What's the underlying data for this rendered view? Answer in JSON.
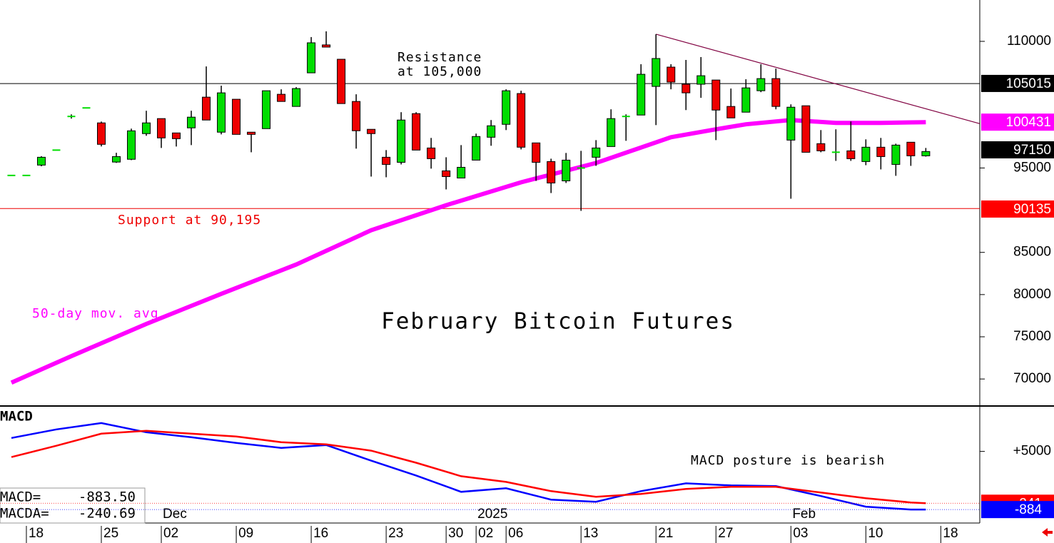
{
  "chart_data": [
    {
      "type": "candlestick",
      "title": "February Bitcoin Futures",
      "x": [
        0,
        1,
        2,
        3,
        4,
        5,
        6,
        7,
        8,
        9,
        10,
        11,
        12,
        13,
        14,
        15,
        16,
        17,
        18,
        19,
        20,
        21,
        22,
        23,
        24,
        25,
        26,
        27,
        28,
        29,
        30,
        31,
        32,
        33,
        34,
        35,
        36,
        37,
        38,
        39,
        40,
        41,
        42,
        43,
        44,
        45,
        46,
        47,
        48,
        49,
        50,
        51,
        52,
        53,
        54,
        55,
        56,
        57,
        58,
        59,
        60,
        61
      ],
      "open": [
        94200,
        94200,
        95340,
        97200,
        101100,
        102200,
        100340,
        95700,
        96030,
        99070,
        100850,
        99150,
        99750,
        103390,
        99240,
        103140,
        99240,
        99660,
        103730,
        102290,
        106270,
        109580,
        107880,
        102880,
        99580,
        96270,
        95670,
        101440,
        97370,
        94660,
        93810,
        95930,
        98640,
        100170,
        103820,
        97970,
        95760,
        93470,
        95000,
        96270,
        97540,
        101100,
        101270,
        104660,
        106950,
        104920,
        104920,
        105420,
        102290,
        101610,
        104150,
        105590,
        98300,
        102370,
        97880,
        96860,
        97030,
        95760,
        97460,
        95420,
        98050,
        96440
      ],
      "high": [
        94200,
        94200,
        96400,
        97200,
        101350,
        102200,
        100500,
        96800,
        99660,
        101780,
        100850,
        99150,
        101780,
        107030,
        104750,
        103140,
        99240,
        104150,
        104320,
        104580,
        110510,
        111190,
        107880,
        103730,
        99580,
        97120,
        101610,
        101610,
        98560,
        96270,
        97710,
        99070,
        100680,
        104320,
        104150,
        97970,
        96100,
        96780,
        97030,
        98300,
        101950,
        101350,
        107290,
        110850,
        107290,
        107800,
        108140,
        105420,
        104410,
        105510,
        107290,
        106780,
        102540,
        102370,
        99490,
        99580,
        100510,
        98390,
        98560,
        97880,
        98050,
        97370
      ],
      "low": [
        94200,
        94200,
        95200,
        97200,
        100850,
        102200,
        97550,
        95600,
        95930,
        98810,
        97370,
        97540,
        97710,
        100680,
        98980,
        98980,
        96860,
        99660,
        102880,
        102290,
        106270,
        109320,
        102630,
        97290,
        93980,
        93900,
        95420,
        97120,
        94920,
        92460,
        93810,
        95930,
        97630,
        99490,
        97200,
        93470,
        92030,
        93220,
        89920,
        95250,
        97540,
        98220,
        101270,
        100080,
        104320,
        101860,
        103310,
        98300,
        100930,
        101610,
        103980,
        101950,
        91360,
        96860,
        96860,
        95840,
        95840,
        95330,
        94830,
        94070,
        95250,
        96350
      ],
      "close": [
        94200,
        94200,
        96270,
        97200,
        101190,
        102200,
        97800,
        96350,
        99400,
        100340,
        98560,
        98470,
        101020,
        100680,
        103900,
        98980,
        98980,
        104150,
        102880,
        104410,
        109830,
        109320,
        102630,
        99410,
        99070,
        95420,
        100680,
        97120,
        96100,
        93980,
        95080,
        98730,
        100000,
        104150,
        97460,
        95670,
        93220,
        95930,
        95080,
        97370,
        100850,
        101190,
        106100,
        107970,
        105170,
        103900,
        105930,
        101860,
        100930,
        104490,
        105590,
        102290,
        102200,
        96860,
        97030,
        96950,
        96100,
        97460,
        96350,
        97710,
        96440,
        96950
      ],
      "up_color": "#00dd00",
      "down_color": "#ee0000",
      "xlim": [
        -0.76,
        64.6
      ],
      "ylim": [
        66800,
        114900
      ],
      "yticks": [
        70000,
        75000,
        80000,
        85000,
        95000,
        110000
      ],
      "xticks": [
        {
          "value": 1,
          "label": "18"
        },
        {
          "value": 6,
          "label": "25"
        },
        {
          "value": 10,
          "label": "02"
        },
        {
          "value": 15,
          "label": "09"
        },
        {
          "value": 20,
          "label": "16"
        },
        {
          "value": 25,
          "label": "23"
        },
        {
          "value": 29,
          "label": "30"
        },
        {
          "value": 31,
          "label": "02"
        },
        {
          "value": 33,
          "label": "06"
        },
        {
          "value": 38,
          "label": "13"
        },
        {
          "value": 43,
          "label": "21"
        },
        {
          "value": 47,
          "label": "27"
        },
        {
          "value": 52,
          "label": "03"
        },
        {
          "value": 57,
          "label": "10"
        },
        {
          "value": 62,
          "label": "18"
        }
      ],
      "month_labels": [
        {
          "value": 10,
          "label": "Dec"
        },
        {
          "value": 31,
          "label": "2025"
        },
        {
          "value": 52,
          "label": "Feb"
        }
      ],
      "series": [
        {
          "name": "50-day mov. avg",
          "color": "#ff00ff",
          "x": [
            0,
            4,
            9,
            14,
            19,
            24,
            29,
            34,
            39,
            44,
            47,
            49,
            52,
            55,
            58,
            61
          ],
          "values": [
            69575,
            72710,
            76525,
            80085,
            83560,
            87625,
            90590,
            93300,
            95590,
            98640,
            99580,
            100170,
            100680,
            100340,
            100340,
            100431
          ]
        }
      ],
      "trendline": {
        "x": [
          43,
          64.6
        ],
        "values": [
          110850,
          100250
        ],
        "color": "#800040"
      },
      "levels": [
        {
          "label": [
            "Resistance",
            "at 105,000"
          ],
          "value": 105000,
          "color": "#000000"
        },
        {
          "label": [
            "Support at 90,195"
          ],
          "value": 90195,
          "color": "#ee0000"
        }
      ],
      "last_values": [
        {
          "value": 105015,
          "color": "#000000"
        },
        {
          "value": 100431,
          "color": "#ff00ff"
        },
        {
          "value": 97150,
          "color": "#000000"
        },
        {
          "value": 90135,
          "color": "#ff0000"
        }
      ]
    },
    {
      "type": "line",
      "title": "MACD",
      "annotation": "MACD posture is bearish",
      "x": [
        0,
        3,
        6,
        9,
        12,
        15,
        18,
        21,
        24,
        27,
        30,
        33,
        36,
        39,
        42,
        45,
        48,
        51,
        54,
        57,
        60,
        61
      ],
      "series": [
        {
          "name": "MACD",
          "color": "#0000ff",
          "values": [
            6363,
            7224,
            7870,
            6937,
            6435,
            5861,
            5359,
            5646,
            4068,
            2561,
            911,
            1270,
            122,
            -93,
            983,
            1772,
            1557,
            1485,
            481,
            -595,
            -882,
            -883.5
          ]
        },
        {
          "name": "MACDA",
          "color": "#ff0000",
          "values": [
            4426,
            5574,
            6794,
            7081,
            6794,
            6507,
            5933,
            5718,
            5072,
            3852,
            2489,
            1915,
            983,
            409,
            696,
            1198,
            1413,
            1413,
            839,
            265,
            -165,
            -240.69
          ]
        }
      ],
      "ylim": [
        -2245,
        9450
      ],
      "yticks": [
        {
          "value": 5000,
          "label": "+5000"
        }
      ],
      "readout": [
        {
          "name": "MACD=",
          "value": -883.5,
          "label": "-883.50"
        },
        {
          "name": "MACDA=",
          "value": -240.69
        }
      ],
      "last_values": [
        {
          "value": -241,
          "color": "#ff0000"
        },
        {
          "value": -884,
          "color": "#0000ff"
        }
      ]
    }
  ]
}
